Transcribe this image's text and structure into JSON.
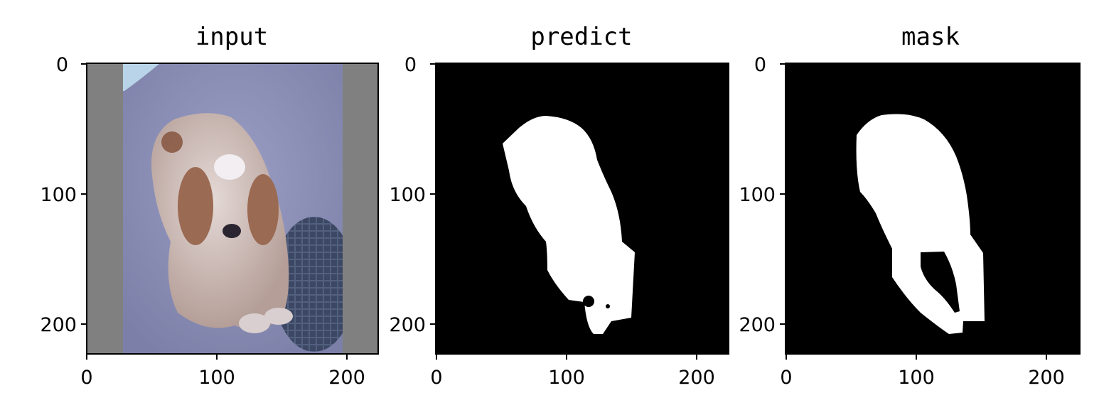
{
  "panels": [
    {
      "title": "input",
      "content": "photo",
      "x_ticks": [
        "0",
        "100",
        "200"
      ],
      "y_ticks": [
        "0",
        "100",
        "200"
      ],
      "colors": {
        "padding": "#808080",
        "ground": "#8b8fb7",
        "fur": "#c7b7b0",
        "patch": "#8a5a45",
        "manhole": "#3b4660"
      }
    },
    {
      "title": "predict",
      "content": "mask",
      "x_ticks": [
        "0",
        "100",
        "200"
      ],
      "y_ticks": [
        "0",
        "100",
        "200"
      ],
      "colors": {
        "background": "#000000",
        "foreground": "#ffffff"
      }
    },
    {
      "title": "mask",
      "content": "mask",
      "x_ticks": [
        "0",
        "100",
        "200"
      ],
      "y_ticks": [
        "0",
        "100",
        "200"
      ],
      "colors": {
        "background": "#000000",
        "foreground": "#ffffff"
      }
    }
  ]
}
